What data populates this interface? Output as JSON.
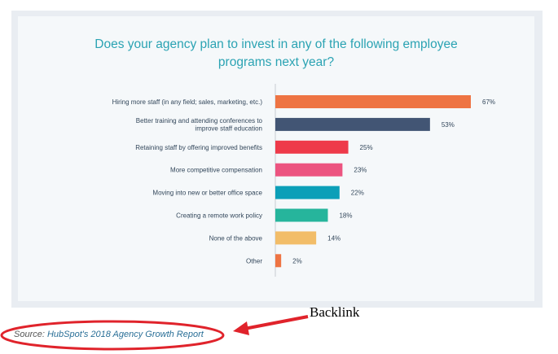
{
  "title_lines": [
    "Does your agency plan to invest in any of the following employee",
    "programs next year?"
  ],
  "source": {
    "prefix": "Source: ",
    "link_text": "HubSpot's 2018 Agency Growth Report"
  },
  "annotation": {
    "label": "Backlink",
    "color": "#e0232b"
  },
  "chart_data": {
    "type": "bar",
    "orientation": "horizontal",
    "title": "Does your agency plan to invest in any of the following employee programs next year?",
    "categories": [
      [
        "Hiring more staff (in any field; sales, marketing, etc.)"
      ],
      [
        "Better training and attending conferences to",
        "improve staff education"
      ],
      [
        "Retaining staff by offering improved benefits"
      ],
      [
        "More competitive compensation"
      ],
      [
        "Moving into new or better office space"
      ],
      [
        "Creating a remote work policy"
      ],
      [
        "None of the above"
      ],
      [
        "Other"
      ]
    ],
    "values": [
      67,
      53,
      25,
      23,
      22,
      18,
      14,
      2
    ],
    "value_labels": [
      "67%",
      "53%",
      "25%",
      "23%",
      "22%",
      "18%",
      "14%",
      "2%"
    ],
    "unit": "%",
    "colors": [
      "#ee7443",
      "#425574",
      "#ee3a4a",
      "#ec5480",
      "#0b9fb8",
      "#26b59c",
      "#f2bd68",
      "#ee7443"
    ],
    "xlim": [
      0,
      67
    ]
  }
}
